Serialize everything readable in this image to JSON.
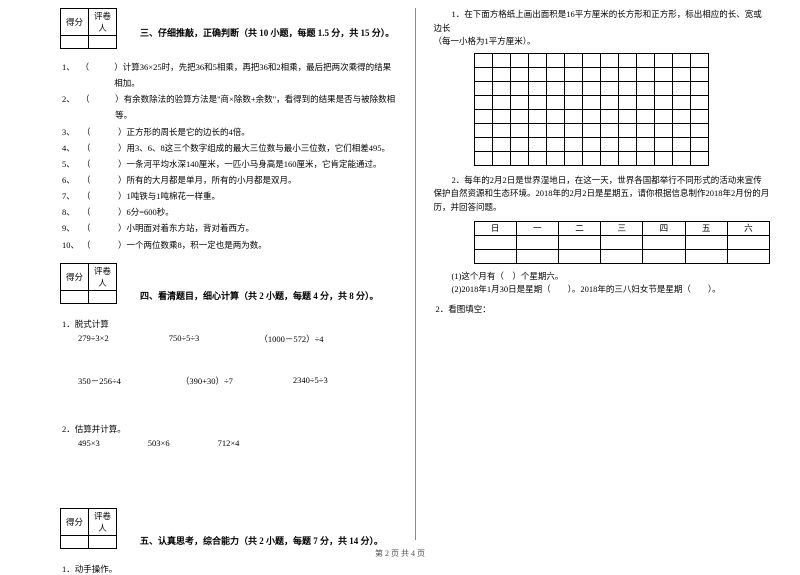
{
  "score_table": {
    "h1": "得分",
    "h2": "评卷人"
  },
  "section3": {
    "title": "三、仔细推敲，正确判断（共 10 小题，每题 1.5 分，共 15 分）。",
    "items": [
      "）计算36×25时，先把36和5相乘，再把36和2相乘，最后把两次乘得的结果相加。",
      "）有余数除法的验算方法是\"商×除数+余数\"，看得到的结果是否与被除数相等。",
      "）正方形的周长是它的边长的4倍。",
      "）用3、6、8这三个数字组成的最大三位数与最小三位数，它们相差495。",
      "）一条河平均水深140厘米，一匹小马身高是160厘米，它肯定能通过。",
      "）所有的大月都是单月，所有的小月都是双月。",
      "）1吨铁与1吨棉花一样重。",
      "）6分=600秒。",
      "）小明面对着东方站，背对着西方。",
      "）一个两位数乘8，积一定也是两为数。"
    ]
  },
  "section4": {
    "title": "四、看清题目，细心计算（共 2 小题，每题 4 分，共 8 分）。",
    "sub1": "1．脱式计算",
    "row1": [
      "279÷3×2",
      "750÷5÷3",
      "（1000－572）÷4"
    ],
    "row2": [
      "350－256÷4",
      "（390+30）÷7",
      "2340÷5÷3"
    ],
    "sub2": "2．估算并计算。",
    "row3": [
      "495×3",
      "503×6",
      "712×4"
    ]
  },
  "section5": {
    "title": "五、认真思考，综合能力（共 2 小题，每题 7 分，共 14 分）。",
    "sub1": "1．动手操作。"
  },
  "right": {
    "p1a": "1．在下面方格纸上画出面积是16平方厘米的长方形和正方形，标出相应的长、宽或边长",
    "p1b": "（每一小格为1平方厘米）。",
    "grid": {
      "rows": 8,
      "cols": 13
    },
    "p2": "2．每年的2月2日是世界湿地日，在这一天，世界各国都举行不同形式的活动来宣传保护自然资源和生态环境。2018年的2月2日是星期五，请你根据信息制作2018年2月份的月历，并回答问题。",
    "calendar_head": [
      "日",
      "一",
      "二",
      "三",
      "四",
      "五",
      "六"
    ],
    "q1": "(1)这个月有（　）个星期六。",
    "q2": "(2)2018年1月30日是星期（　　）。2018年的三八妇女节是星期（　　）。",
    "sub2": "2．看图填空："
  },
  "footer": "第 2 页 共 4 页"
}
